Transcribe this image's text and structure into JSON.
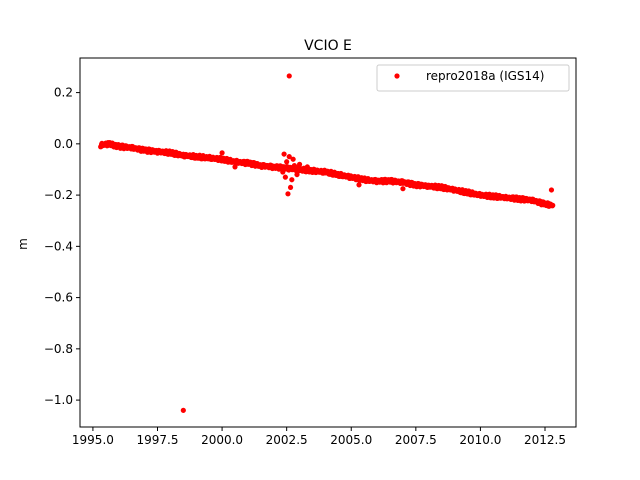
{
  "chart_data": {
    "type": "scatter",
    "title": "VCIO E",
    "xlabel": "",
    "ylabel": "m",
    "xlim": [
      1994.5,
      2013.7
    ],
    "ylim": [
      -1.105,
      0.335
    ],
    "xticks": [
      1995.0,
      1997.5,
      2000.0,
      2002.5,
      2005.0,
      2007.5,
      2010.0,
      2012.5
    ],
    "xtick_labels": [
      "1995.0",
      "1997.5",
      "2000.0",
      "2002.5",
      "2005.0",
      "2007.5",
      "2010.0",
      "2012.5"
    ],
    "yticks": [
      0.2,
      0.0,
      -0.2,
      -0.4,
      -0.6,
      -0.8,
      -1.0
    ],
    "ytick_labels": [
      "0.2",
      "0.0",
      "−0.2",
      "−0.4",
      "−0.6",
      "−0.8",
      "−1.0"
    ],
    "grid": false,
    "legend_position": "top-right",
    "series": [
      {
        "name": "repro2018a (IGS14)",
        "color": "#ff0000",
        "marker": "dot",
        "trend": [
          [
            1995.3,
            -0.005
          ],
          [
            1995.6,
            0.0
          ],
          [
            1996.0,
            -0.01
          ],
          [
            1996.5,
            -0.015
          ],
          [
            1997.0,
            -0.025
          ],
          [
            1997.5,
            -0.03
          ],
          [
            1998.0,
            -0.035
          ],
          [
            1998.5,
            -0.045
          ],
          [
            1999.0,
            -0.05
          ],
          [
            1999.5,
            -0.055
          ],
          [
            2000.0,
            -0.06
          ],
          [
            2000.5,
            -0.07
          ],
          [
            2001.0,
            -0.075
          ],
          [
            2001.5,
            -0.085
          ],
          [
            2002.0,
            -0.09
          ],
          [
            2002.5,
            -0.095
          ],
          [
            2003.0,
            -0.1
          ],
          [
            2003.5,
            -0.105
          ],
          [
            2004.0,
            -0.11
          ],
          [
            2004.5,
            -0.12
          ],
          [
            2005.0,
            -0.13
          ],
          [
            2005.5,
            -0.14
          ],
          [
            2006.0,
            -0.145
          ],
          [
            2006.5,
            -0.145
          ],
          [
            2007.0,
            -0.15
          ],
          [
            2007.5,
            -0.16
          ],
          [
            2008.0,
            -0.165
          ],
          [
            2008.5,
            -0.17
          ],
          [
            2009.0,
            -0.18
          ],
          [
            2009.5,
            -0.19
          ],
          [
            2010.0,
            -0.2
          ],
          [
            2010.5,
            -0.205
          ],
          [
            2011.0,
            -0.21
          ],
          [
            2011.5,
            -0.215
          ],
          [
            2012.0,
            -0.22
          ],
          [
            2012.5,
            -0.235
          ],
          [
            2012.8,
            -0.24
          ]
        ],
        "outliers": [
          [
            2002.6,
            0.265
          ],
          [
            1998.5,
            -1.04
          ],
          [
            2012.75,
            -0.18
          ],
          [
            2000.0,
            -0.035
          ],
          [
            2002.4,
            -0.04
          ],
          [
            2002.6,
            -0.05
          ],
          [
            2002.55,
            -0.195
          ],
          [
            2002.65,
            -0.17
          ],
          [
            2002.45,
            -0.13
          ],
          [
            2002.7,
            -0.14
          ],
          [
            2002.5,
            -0.07
          ],
          [
            2002.8,
            -0.085
          ],
          [
            2002.35,
            -0.11
          ],
          [
            2002.9,
            -0.12
          ],
          [
            2003.0,
            -0.08
          ],
          [
            2002.75,
            -0.06
          ],
          [
            2005.3,
            -0.16
          ],
          [
            2007.0,
            -0.175
          ],
          [
            2000.5,
            -0.09
          ],
          [
            2003.3,
            -0.09
          ]
        ]
      }
    ]
  }
}
